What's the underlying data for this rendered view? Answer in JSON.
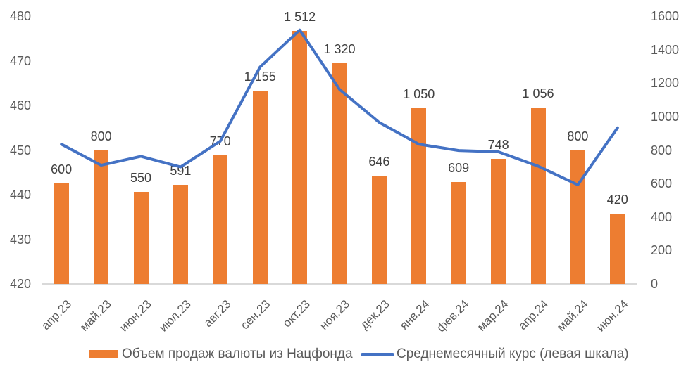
{
  "chart_data": {
    "type": "combo",
    "title": "",
    "categories": [
      "апр.23",
      "май.23",
      "июн.23",
      "июл.23",
      "авг.23",
      "сен.23",
      "окт.23",
      "ноя.23",
      "дек.23",
      "янв.24",
      "фев.24",
      "мар.24",
      "апр.24",
      "май.24",
      "июн.24"
    ],
    "series": [
      {
        "name": "Объем продаж валюты из Нацфонда",
        "type": "bar",
        "axis": "right",
        "color": "#ED7D31",
        "values": [
          600,
          800,
          550,
          591,
          770,
          1155,
          1512,
          1320,
          646,
          1050,
          609,
          748,
          1056,
          800,
          420
        ],
        "labels": [
          "600",
          "800",
          "550",
          "591",
          "770",
          "1 155",
          "1 512",
          "1 320",
          "646",
          "1 050",
          "609",
          "748",
          "1 056",
          "800",
          "420"
        ]
      },
      {
        "name": "Среднемесячный курс (левая шкала)",
        "type": "line",
        "axis": "left",
        "color": "#4472C4",
        "values": [
          451.3,
          446.6,
          448.6,
          446.2,
          452.0,
          468.6,
          476.9,
          463.6,
          456.2,
          451.3,
          449.9,
          449.6,
          446.4,
          442.2,
          455.0
        ]
      }
    ],
    "left_axis": {
      "min": 420,
      "max": 480,
      "step": 10,
      "ticks": [
        "420",
        "430",
        "440",
        "450",
        "460",
        "470",
        "480"
      ]
    },
    "right_axis": {
      "min": 0,
      "max": 1600,
      "step": 200,
      "ticks": [
        "0",
        "200",
        "400",
        "600",
        "800",
        "1000",
        "1200",
        "1400",
        "1600"
      ]
    },
    "grid": false,
    "legend_position": "bottom",
    "colors": {
      "bar": "#ED7D31",
      "line": "#4472C4",
      "axis_text": "#595959",
      "data_label_text": "#404040",
      "axis_line": "#D9D9D9"
    }
  }
}
